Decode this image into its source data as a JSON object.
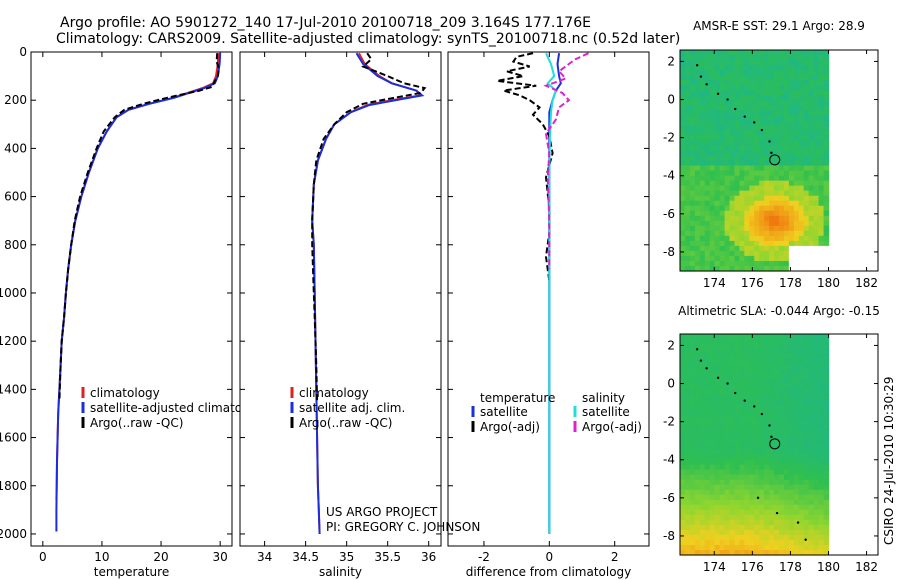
{
  "title_line1": "Argo profile: AO 5901272_140 17-Jul-2010 20100718_209 3.164S 177.176E",
  "title_line2": "Climatology: CARS2009. Satellite-adjusted climatology: synTS_20100718.nc (0.52d later)",
  "credit_line1": "US ARGO PROJECT",
  "credit_line2": "PI: GREGORY C. JOHNSON",
  "side_stamp": "CSIRO 24-Jul-2010 10:30:29",
  "colors": {
    "climatology": "#dd2222",
    "satellite": "#1a2ee0",
    "argo": "#000000",
    "satellite_diff": "#22dddd",
    "argo_diff": "#e020d0"
  },
  "chart_data": [
    {
      "id": "temperature",
      "type": "line",
      "xlabel": "temperature",
      "ylabel": "",
      "xlim": [
        -2,
        32
      ],
      "ylim": [
        2050,
        0
      ],
      "xticks": [
        0,
        10,
        20,
        30
      ],
      "xtick_labels": [
        "0",
        "10",
        "20",
        "30"
      ],
      "yticks": [
        0,
        200,
        400,
        600,
        800,
        1000,
        1200,
        1400,
        1600,
        1800,
        2000
      ],
      "ytick_labels": [
        "0",
        "200",
        "400",
        "600",
        "800",
        "1000",
        "1200",
        "1400",
        "1600",
        "1800",
        "2000"
      ],
      "legend": [
        "climatology",
        "satellite-adjusted climatology",
        "Argo(..raw -QC)"
      ],
      "series": [
        {
          "name": "climatology",
          "style": "solid",
          "x": [
            29.7,
            29.6,
            29.3,
            28.8,
            27,
            22,
            18,
            14.5,
            12.5,
            10.8,
            9.3,
            7.8,
            6.5,
            5.5,
            4.8,
            4.3,
            3.9,
            3.6,
            3.2,
            3.0,
            2.8,
            2.6,
            2.5,
            2.4,
            2.35,
            2.3
          ],
          "y": [
            5,
            50,
            100,
            130,
            150,
            190,
            215,
            240,
            270,
            330,
            400,
            500,
            600,
            700,
            800,
            900,
            1000,
            1100,
            1200,
            1300,
            1400,
            1500,
            1600,
            1700,
            1800,
            1860
          ]
        },
        {
          "name": "satellite",
          "style": "solid",
          "x": [
            30.0,
            29.9,
            29.6,
            29.1,
            27.3,
            22.2,
            18,
            14.5,
            12.5,
            10.8,
            9.3,
            7.8,
            6.5,
            5.5,
            4.8,
            4.3,
            3.9,
            3.6,
            3.2,
            3.0,
            2.8,
            2.6,
            2.5,
            2.4,
            2.35,
            2.3,
            2.3
          ],
          "y": [
            5,
            50,
            100,
            130,
            150,
            190,
            215,
            240,
            270,
            330,
            400,
            500,
            600,
            700,
            800,
            900,
            1000,
            1100,
            1200,
            1300,
            1400,
            1500,
            1600,
            1700,
            1800,
            1900,
            1990
          ]
        },
        {
          "name": "argo",
          "style": "dash",
          "x": [
            29.5,
            29.4,
            29.8,
            29.6,
            29.0,
            28.6,
            26.5,
            21,
            17,
            13.8,
            12.2,
            10.3,
            9.1,
            7.6,
            6.3,
            5.4,
            4.8,
            4.3,
            3.9,
            3.6,
            3.2,
            3.0,
            2.8
          ],
          "y": [
            5,
            40,
            70,
            100,
            125,
            145,
            160,
            190,
            215,
            240,
            270,
            330,
            400,
            500,
            600,
            700,
            800,
            900,
            1000,
            1100,
            1200,
            1300,
            1450
          ]
        }
      ]
    },
    {
      "id": "salinity",
      "type": "line",
      "xlabel": "salinity",
      "ylabel": "",
      "xlim": [
        33.7,
        36.15
      ],
      "ylim": [
        2050,
        0
      ],
      "xticks": [
        34,
        34.5,
        35,
        35.5,
        36
      ],
      "xtick_labels": [
        "34",
        "34.5",
        "35",
        "35.5",
        "36"
      ],
      "legend": [
        "climatology",
        "satellite adj. clim.",
        "Argo(..raw -QC)"
      ],
      "series": [
        {
          "name": "climatology",
          "style": "solid",
          "x": [
            35.15,
            35.22,
            35.4,
            35.55,
            35.85,
            35.9,
            35.55,
            35.25,
            35.05,
            34.85,
            34.75,
            34.65,
            34.6,
            34.58,
            34.6,
            34.61,
            34.62,
            34.63,
            34.64,
            34.65,
            34.66,
            34.67
          ],
          "y": [
            5,
            50,
            100,
            130,
            160,
            180,
            200,
            220,
            250,
            300,
            360,
            450,
            550,
            700,
            800,
            1000,
            1200,
            1400,
            1600,
            1800,
            1900,
            2000
          ]
        },
        {
          "name": "satellite",
          "style": "solid",
          "x": [
            35.12,
            35.2,
            35.38,
            35.55,
            35.85,
            35.92,
            35.6,
            35.28,
            35.05,
            34.85,
            34.75,
            34.65,
            34.6,
            34.58,
            34.6,
            34.61,
            34.62,
            34.63,
            34.64,
            34.65,
            34.66,
            34.67
          ],
          "y": [
            5,
            50,
            100,
            130,
            160,
            180,
            200,
            220,
            250,
            300,
            360,
            450,
            550,
            700,
            800,
            1000,
            1200,
            1400,
            1600,
            1800,
            1900,
            2000
          ]
        },
        {
          "name": "argo",
          "style": "dash",
          "x": [
            35.25,
            35.3,
            35.2,
            35.5,
            35.7,
            35.95,
            35.9,
            35.5,
            35.2,
            35.0,
            34.85,
            34.72,
            34.63,
            34.6,
            34.58,
            34.58,
            34.6,
            34.61,
            34.62,
            34.63,
            34.64
          ],
          "y": [
            5,
            30,
            60,
            100,
            130,
            150,
            170,
            195,
            215,
            250,
            300,
            360,
            450,
            550,
            700,
            800,
            1000,
            1100,
            1200,
            1300,
            1450
          ]
        }
      ]
    },
    {
      "id": "difference",
      "type": "line",
      "xlabel": "difference from climatology",
      "ylabel": "",
      "xlim": [
        -3.1,
        3.05
      ],
      "ylim": [
        2050,
        0
      ],
      "xticks": [
        -2,
        0,
        2
      ],
      "xtick_labels": [
        "-2",
        "0",
        "2"
      ],
      "legend_temperature_header": "temperature",
      "legend_salinity_header": "salinity",
      "legend_left": [
        "satellite",
        "Argo(-adj)"
      ],
      "legend_right": [
        "satellite",
        "Argo(-adj)"
      ],
      "series": [
        {
          "name": "temperature satellite",
          "style": "solid",
          "x": [
            0.3,
            0.25,
            0.3,
            0.35,
            0.2,
            0.1,
            0.0,
            0.0,
            0.0,
            0.0,
            0.0,
            0.0,
            0.0,
            0.0
          ],
          "y": [
            5,
            50,
            100,
            130,
            160,
            200,
            250,
            400,
            700,
            1000,
            1300,
            1600,
            1800,
            2000
          ]
        },
        {
          "name": "temperature argo",
          "style": "dash",
          "x": [
            -0.5,
            -1.0,
            -1.1,
            -0.6,
            -1.3,
            -0.8,
            -1.6,
            -0.4,
            -1.4,
            -0.9,
            -0.6,
            -0.3,
            -0.5,
            -0.2,
            0.0,
            0.1,
            -0.1,
            0.0,
            0.0,
            -0.1,
            0.0
          ],
          "y": [
            5,
            20,
            40,
            60,
            80,
            100,
            120,
            140,
            160,
            180,
            200,
            230,
            260,
            300,
            350,
            420,
            520,
            650,
            750,
            850,
            950
          ]
        },
        {
          "name": "salinity satellite",
          "style": "solid",
          "x": [
            -0.1,
            0.05,
            0.15,
            -0.05,
            0.2,
            0.1,
            0.05,
            0.02,
            0.0,
            0.0,
            0.0,
            0.0,
            0.0,
            0.0
          ],
          "y": [
            5,
            50,
            100,
            130,
            160,
            200,
            250,
            350,
            500,
            800,
            1100,
            1500,
            1800,
            2000
          ]
        },
        {
          "name": "salinity argo",
          "style": "dash",
          "x": [
            1.2,
            0.8,
            0.6,
            0.3,
            0.5,
            -0.1,
            0.4,
            0.6,
            0.3,
            0.2,
            -0.1,
            0.0,
            -0.05,
            0.0,
            0.0
          ],
          "y": [
            5,
            30,
            50,
            80,
            110,
            140,
            170,
            200,
            230,
            280,
            340,
            420,
            520,
            700,
            900
          ]
        }
      ]
    },
    {
      "id": "sst_map",
      "type": "heatmap",
      "title": "AMSR-E SST: 29.1  Argo: 28.9",
      "xlim": [
        172.2,
        182.6
      ],
      "ylim": [
        -9,
        2.6
      ],
      "xticks": [
        174,
        176,
        178,
        180,
        182
      ],
      "xtick_labels": [
        "174",
        "176",
        "178",
        "180",
        "182"
      ],
      "yticks": [
        2,
        0,
        -2,
        -4,
        -6,
        -8
      ],
      "ytick_labels": [
        "2",
        "0",
        "-2",
        "-4",
        "-6",
        "-8"
      ],
      "data_extent_lon": [
        172.2,
        180
      ],
      "float_position": [
        177.176,
        -3.164
      ],
      "warm_patch_center": [
        177.2,
        -6.4
      ],
      "track": [
        [
          173.1,
          1.8
        ],
        [
          173.3,
          1.2
        ],
        [
          173.6,
          0.8
        ],
        [
          174.2,
          0.3
        ],
        [
          174.7,
          0.0
        ],
        [
          175.1,
          -0.5
        ],
        [
          175.6,
          -0.9
        ],
        [
          176.1,
          -1.2
        ],
        [
          176.5,
          -1.6
        ],
        [
          176.9,
          -2.2
        ],
        [
          177.0,
          -2.8
        ]
      ]
    },
    {
      "id": "sla_map",
      "type": "heatmap",
      "title": "Altimetric SLA: -0.044  Argo: -0.15",
      "xlim": [
        172.2,
        182.6
      ],
      "ylim": [
        -9,
        2.6
      ],
      "xticks": [
        174,
        176,
        178,
        180,
        182
      ],
      "xtick_labels": [
        "174",
        "176",
        "178",
        "180",
        "182"
      ],
      "yticks": [
        2,
        0,
        -2,
        -4,
        -6,
        -8
      ],
      "ytick_labels": [
        "2",
        "0",
        "-2",
        "-4",
        "-6",
        "-8"
      ],
      "data_extent_lon": [
        172.2,
        180
      ],
      "float_position": [
        177.176,
        -3.164
      ],
      "track": [
        [
          173.1,
          1.8
        ],
        [
          173.3,
          1.2
        ],
        [
          173.6,
          0.8
        ],
        [
          174.2,
          0.3
        ],
        [
          174.7,
          0.0
        ],
        [
          175.1,
          -0.5
        ],
        [
          175.6,
          -0.9
        ],
        [
          176.1,
          -1.2
        ],
        [
          176.5,
          -1.6
        ],
        [
          176.9,
          -2.2
        ],
        [
          177.0,
          -2.8
        ],
        [
          176.3,
          -6.0
        ],
        [
          177.3,
          -6.8
        ],
        [
          178.4,
          -7.3
        ],
        [
          178.8,
          -8.2
        ]
      ]
    }
  ]
}
